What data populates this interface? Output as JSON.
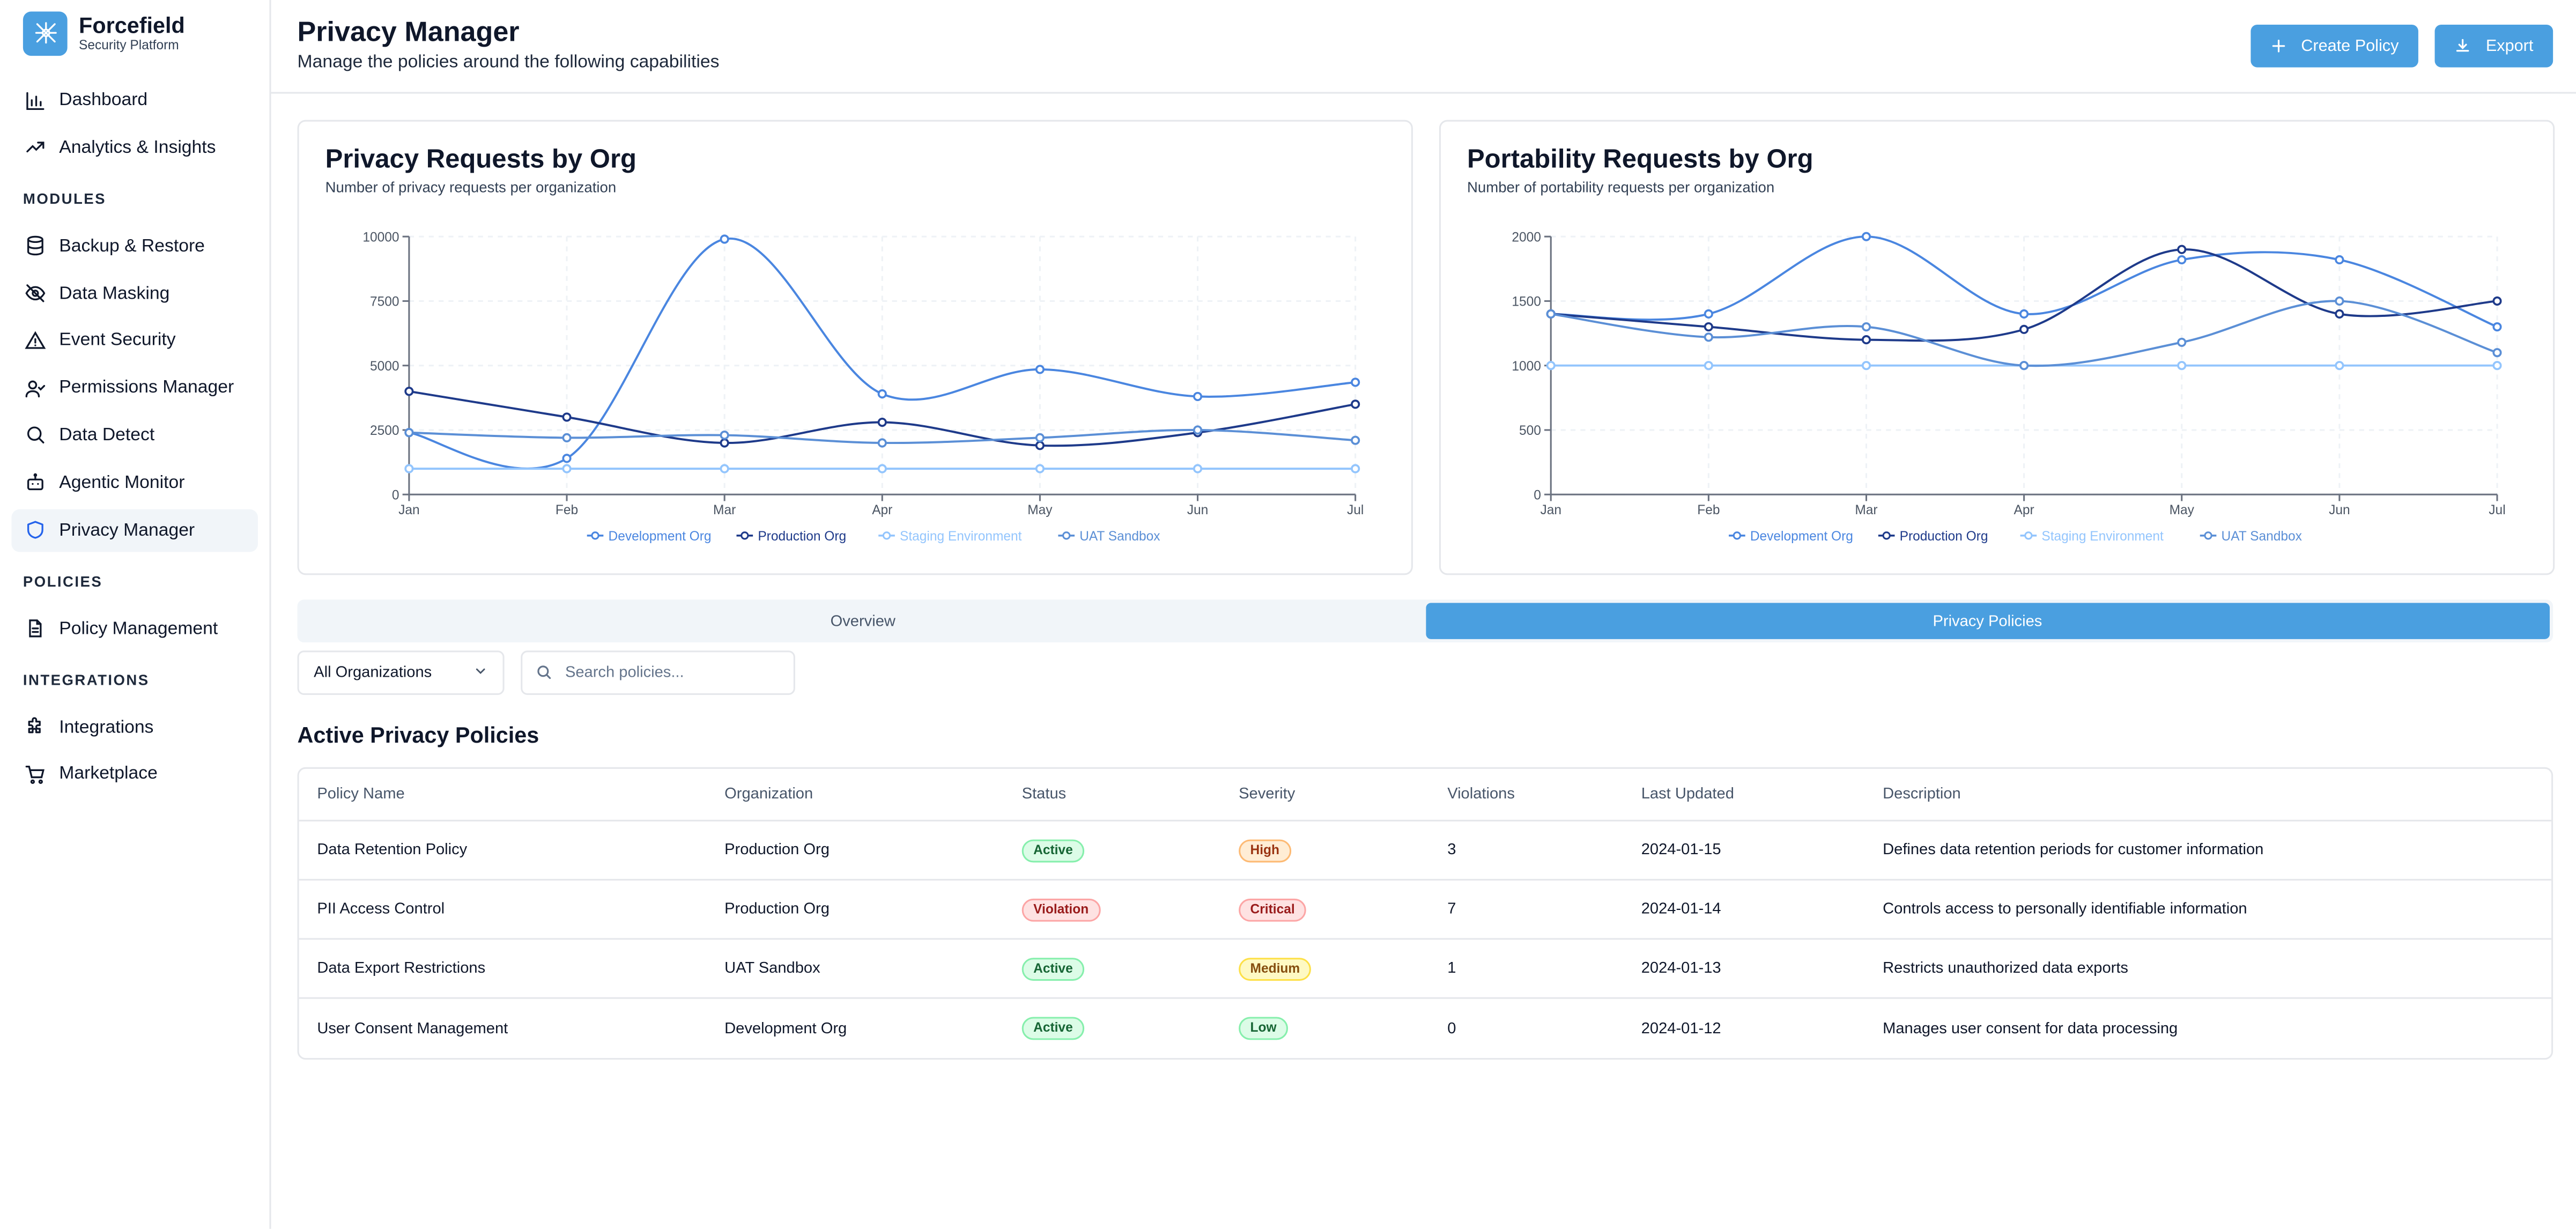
{
  "app": {
    "name": "Forcefield",
    "subtitle": "Security Platform"
  },
  "sidebar": {
    "top_items": [
      {
        "label": "Dashboard",
        "icon": "bar-chart-icon"
      },
      {
        "label": "Analytics & Insights",
        "icon": "trending-up-icon"
      }
    ],
    "sections": [
      {
        "title": "MODULES",
        "items": [
          {
            "label": "Backup & Restore",
            "icon": "database-icon"
          },
          {
            "label": "Data Masking",
            "icon": "eye-off-icon"
          },
          {
            "label": "Event Security",
            "icon": "alert-triangle-icon"
          },
          {
            "label": "Permissions Manager",
            "icon": "user-check-icon"
          },
          {
            "label": "Data Detect",
            "icon": "search-icon"
          },
          {
            "label": "Agentic Monitor",
            "icon": "bot-icon"
          },
          {
            "label": "Privacy Manager",
            "icon": "shield-icon",
            "active": true
          }
        ]
      },
      {
        "title": "POLICIES",
        "items": [
          {
            "label": "Policy Management",
            "icon": "file-text-icon"
          }
        ]
      },
      {
        "title": "INTEGRATIONS",
        "items": [
          {
            "label": "Integrations",
            "icon": "puzzle-icon"
          },
          {
            "label": "Marketplace",
            "icon": "cart-icon"
          }
        ]
      }
    ]
  },
  "header": {
    "title": "Privacy Manager",
    "subtitle": "Manage the policies around the following capabilities",
    "create_label": "Create Policy",
    "export_label": "Export"
  },
  "chart_data": [
    {
      "type": "line",
      "title": "Privacy Requests by Org",
      "subtitle": "Number of privacy requests per organization",
      "categories": [
        "Jan",
        "Feb",
        "Mar",
        "Apr",
        "May",
        "Jun",
        "Jul"
      ],
      "ylim": [
        0,
        10000
      ],
      "yticks": [
        0,
        2500,
        5000,
        7500,
        10000
      ],
      "legend": "bottom",
      "series": [
        {
          "name": "Development Org",
          "color": "#4a86e0",
          "values": [
            2400,
            1400,
            9900,
            3900,
            4850,
            3800,
            4350
          ]
        },
        {
          "name": "Production Org",
          "color": "#1e3a8a",
          "values": [
            4000,
            3000,
            2000,
            2800,
            1900,
            2400,
            3500
          ]
        },
        {
          "name": "Staging Environment",
          "color": "#93c5fd",
          "values": [
            1000,
            1000,
            1000,
            1000,
            1000,
            1000,
            1000
          ]
        },
        {
          "name": "UAT Sandbox",
          "color": "#5b8fd6",
          "values": [
            2400,
            2200,
            2300,
            2000,
            2200,
            2500,
            2100
          ]
        }
      ]
    },
    {
      "type": "line",
      "title": "Portability Requests by Org",
      "subtitle": "Number of portability requests per organization",
      "categories": [
        "Jan",
        "Feb",
        "Mar",
        "Apr",
        "May",
        "Jun",
        "Jul"
      ],
      "ylim": [
        0,
        2000
      ],
      "yticks": [
        0,
        500,
        1000,
        1500,
        2000
      ],
      "legend": "bottom",
      "series": [
        {
          "name": "Development Org",
          "color": "#4a86e0",
          "values": [
            1400,
            1400,
            2000,
            1400,
            1820,
            1820,
            1300
          ]
        },
        {
          "name": "Production Org",
          "color": "#1e3a8a",
          "values": [
            1400,
            1300,
            1200,
            1280,
            1900,
            1400,
            1500
          ]
        },
        {
          "name": "Staging Environment",
          "color": "#93c5fd",
          "values": [
            1000,
            1000,
            1000,
            1000,
            1000,
            1000,
            1000
          ]
        },
        {
          "name": "UAT Sandbox",
          "color": "#5b8fd6",
          "values": [
            1400,
            1220,
            1300,
            1000,
            1180,
            1500,
            1100
          ]
        }
      ]
    }
  ],
  "tabs": [
    {
      "label": "Overview",
      "active": false
    },
    {
      "label": "Privacy Policies",
      "active": true
    }
  ],
  "filters": {
    "org_select_value": "All Organizations",
    "search_placeholder": "Search policies..."
  },
  "policies": {
    "title": "Active Privacy Policies",
    "columns": [
      "Policy Name",
      "Organization",
      "Status",
      "Severity",
      "Violations",
      "Last Updated",
      "Description"
    ],
    "rows": [
      {
        "name": "Data Retention Policy",
        "org": "Production Org",
        "status": "Active",
        "severity": "High",
        "violations": "3",
        "updated": "2024-01-15",
        "description": "Defines data retention periods for customer information"
      },
      {
        "name": "PII Access Control",
        "org": "Production Org",
        "status": "Violation",
        "severity": "Critical",
        "violations": "7",
        "updated": "2024-01-14",
        "description": "Controls access to personally identifiable information"
      },
      {
        "name": "Data Export Restrictions",
        "org": "UAT Sandbox",
        "status": "Active",
        "severity": "Medium",
        "violations": "1",
        "updated": "2024-01-13",
        "description": "Restricts unauthorized data exports"
      },
      {
        "name": "User Consent Management",
        "org": "Development Org",
        "status": "Active",
        "severity": "Low",
        "violations": "0",
        "updated": "2024-01-12",
        "description": "Manages user consent for data processing"
      }
    ]
  }
}
